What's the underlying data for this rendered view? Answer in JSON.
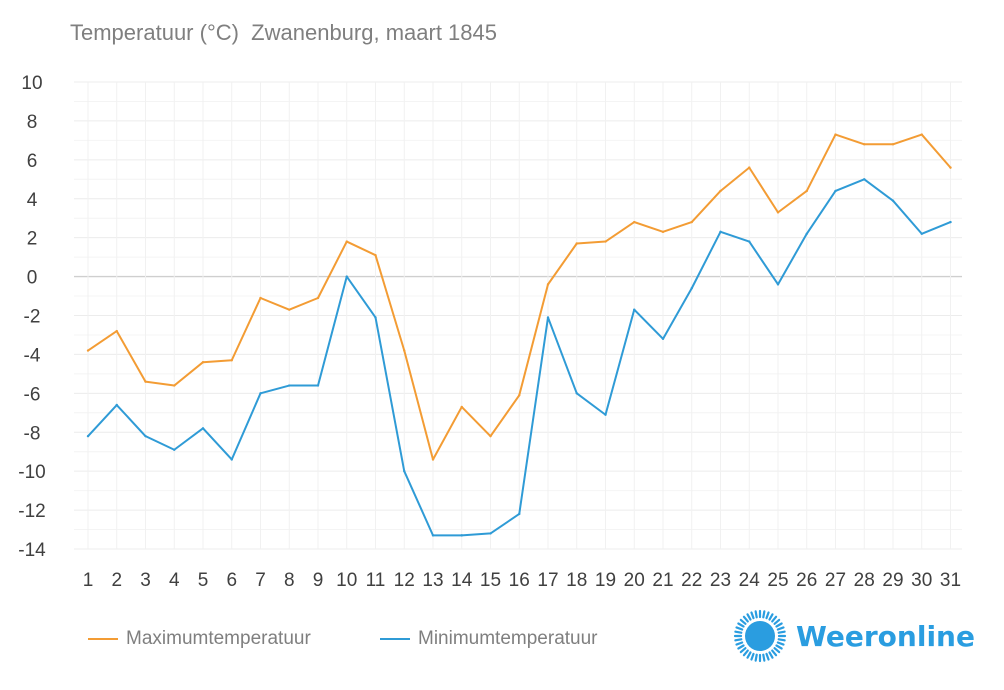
{
  "chart_data": {
    "type": "line",
    "title": "Temperatuur (°C)  Zwanenburg, maart 1845",
    "xlabel": "",
    "ylabel": "",
    "ylim": [
      -14,
      10
    ],
    "yticks": [
      10,
      8,
      6,
      4,
      2,
      0,
      -2,
      -4,
      -6,
      -8,
      -10,
      -12,
      -14
    ],
    "ytick_labels": [
      "10",
      "8",
      "6",
      "4",
      "2",
      "0",
      "-2",
      "-4",
      "-6",
      "-8",
      "-10",
      "-12",
      "-14"
    ],
    "categories": [
      "1",
      "2",
      "3",
      "4",
      "5",
      "6",
      "7",
      "8",
      "9",
      "10",
      "11",
      "12",
      "13",
      "14",
      "15",
      "16",
      "17",
      "18",
      "19",
      "20",
      "21",
      "22",
      "23",
      "24",
      "25",
      "26",
      "27",
      "28",
      "29",
      "30",
      "31"
    ],
    "grid": true,
    "legend_position": "bottom-left",
    "series": [
      {
        "name": "Maximumtemperatuur",
        "color": "#f39c34",
        "values": [
          -3.8,
          -2.8,
          -5.4,
          -5.6,
          -4.4,
          -4.3,
          -1.1,
          -1.7,
          -1.1,
          1.8,
          1.1,
          -3.8,
          -9.4,
          -6.7,
          -8.2,
          -6.1,
          -0.4,
          1.7,
          1.8,
          2.8,
          2.3,
          2.8,
          4.4,
          5.6,
          3.3,
          4.4,
          7.3,
          6.8,
          6.8,
          7.3,
          5.6
        ]
      },
      {
        "name": "Minimumtemperatuur",
        "color": "#2f9bd6",
        "values": [
          -8.2,
          -6.6,
          -8.2,
          -8.9,
          -7.8,
          -9.4,
          -6.0,
          -5.6,
          -5.6,
          0.0,
          -2.1,
          -10.0,
          -13.3,
          -13.3,
          -13.2,
          -12.2,
          -2.1,
          -6.0,
          -7.1,
          -1.7,
          -3.2,
          -0.6,
          2.3,
          1.8,
          -0.4,
          2.2,
          4.4,
          5.0,
          3.9,
          2.2,
          2.8
        ]
      }
    ]
  },
  "legend": {
    "max_label": "Maximumtemperatuur",
    "min_label": "Minimumtemperatuur"
  },
  "brand": {
    "name": "Weeronline",
    "color": "#2a9de0",
    "logo_icon": "sun-icon"
  }
}
